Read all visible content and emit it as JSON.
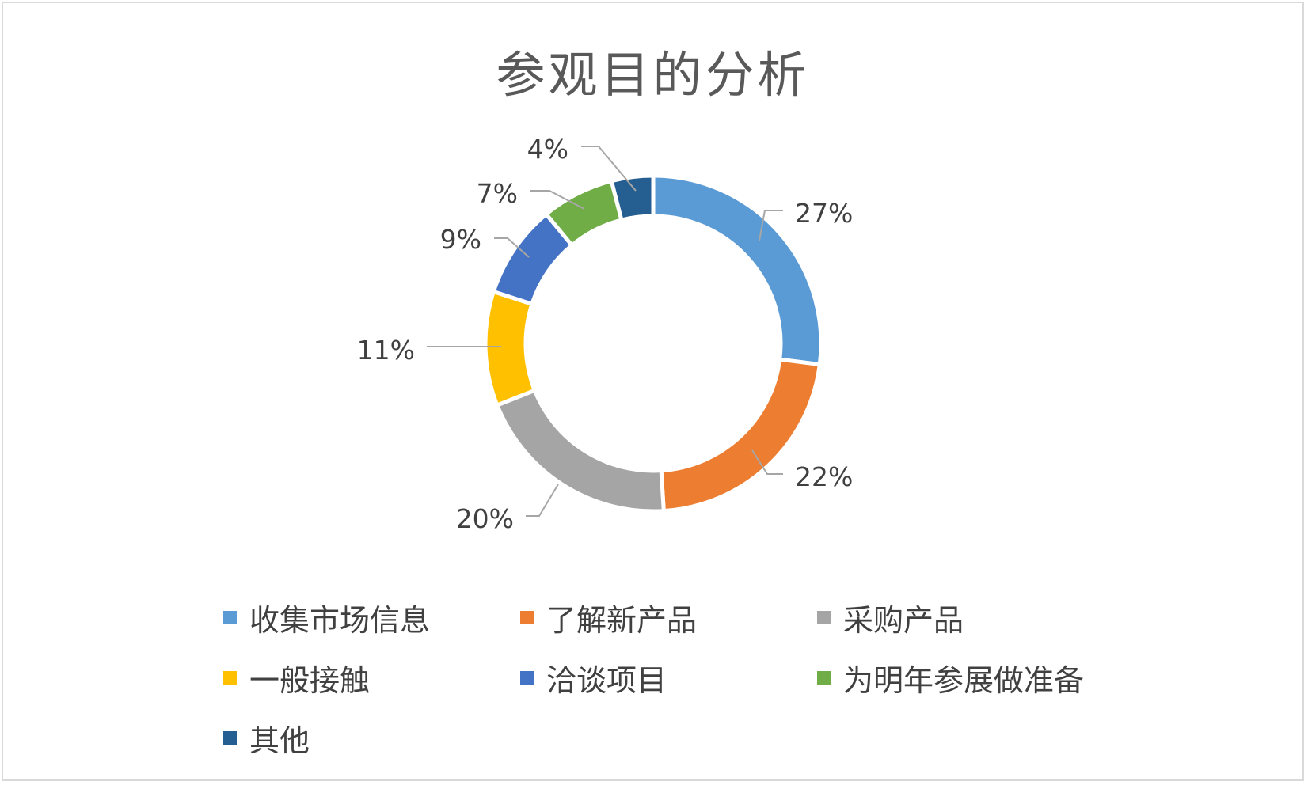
{
  "chart_data": {
    "type": "pie",
    "variant": "donut",
    "title": "参观目的分析",
    "categories": [
      "收集市场信息",
      "了解新产品",
      "采购产品",
      "一般接触",
      "洽谈项目",
      "为明年参展做准备",
      "其他"
    ],
    "values": [
      27,
      22,
      20,
      11,
      9,
      7,
      4
    ],
    "labels": [
      "27%",
      "22%",
      "20%",
      "11%",
      "9%",
      "7%",
      "4%"
    ],
    "colors": [
      "#5b9bd5",
      "#ed7d31",
      "#a5a5a5",
      "#ffc000",
      "#4472c4",
      "#70ad47",
      "#255e91"
    ],
    "legend_position": "bottom"
  }
}
